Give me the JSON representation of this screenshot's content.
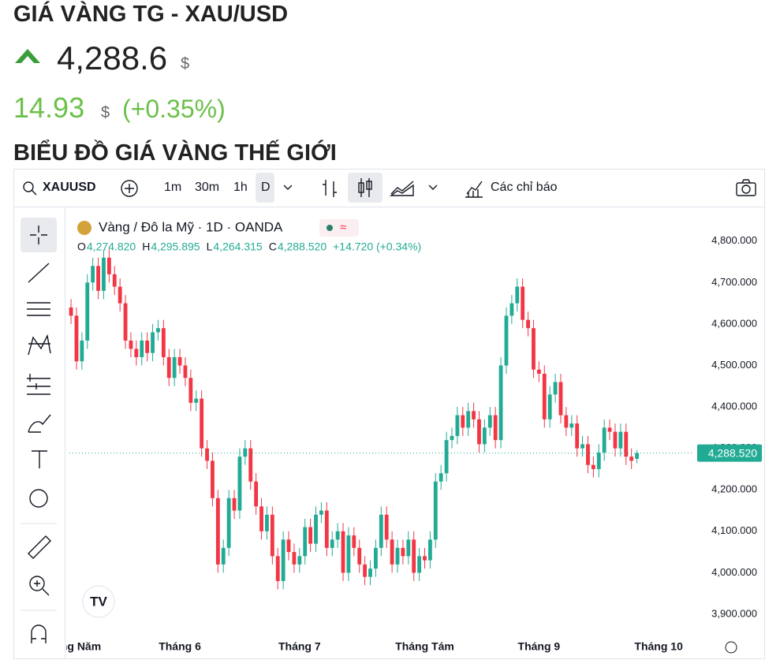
{
  "header": {
    "title": "GIÁ VÀNG TG - XAU/USD",
    "price": "4,288.6",
    "price_unit": "$",
    "change": "14.93",
    "change_unit": "$",
    "change_percent": "(+0.35%)",
    "section_title": "BIỂU ĐỒ GIÁ VÀNG THẾ GIỚI"
  },
  "toolbar": {
    "symbol": "XAUUSD",
    "intervals": [
      "1m",
      "30m",
      "1h",
      "D"
    ],
    "indicators": "Các chỉ báo"
  },
  "legend": {
    "title": "Vàng / Đô la Mỹ · 1D · OANDA",
    "o_label": "O",
    "o": "4,274.820",
    "h_label": "H",
    "h": "4,295.895",
    "l_label": "L",
    "l": "4,264.315",
    "c_label": "C",
    "c": "4,288.520",
    "change": "+14.720 (+0.34%)"
  },
  "chart_data": {
    "type": "candlestick",
    "up_color": "#22ab94",
    "down_color": "#f23645",
    "xlim": [
      -0.3,
      114.5
    ],
    "xticks": [
      {
        "value": 0,
        "label": "Tháng Năm"
      },
      {
        "value": 20,
        "label": "Tháng 6"
      },
      {
        "value": 42,
        "label": "Tháng 7"
      },
      {
        "value": 65,
        "label": "Tháng Tám"
      },
      {
        "value": 86,
        "label": "Tháng 9"
      },
      {
        "value": 108,
        "label": "Tháng 10"
      }
    ],
    "ylim": [
      3860,
      4868
    ],
    "yticks": [
      {
        "value": 3900,
        "label": "3,900.000"
      },
      {
        "value": 4000,
        "label": "4,000.000"
      },
      {
        "value": 4100,
        "label": "4,100.000"
      },
      {
        "value": 4200,
        "label": "4,200.000"
      },
      {
        "value": 4300,
        "label": "4,300.000"
      },
      {
        "value": 4400,
        "label": "4,400.000"
      },
      {
        "value": 4500,
        "label": "4,500.000"
      },
      {
        "value": 4600,
        "label": "4,600.000"
      },
      {
        "value": 4700,
        "label": "4,700.000"
      },
      {
        "value": 4800,
        "label": "4,800.000"
      }
    ],
    "price_line": {
      "value": 4288.52,
      "label": "4,288.520"
    },
    "open": [
      4640,
      4620,
      4510,
      4560,
      4700,
      4740,
      4680,
      4760,
      4720,
      4690,
      4650,
      4560,
      4540,
      4520,
      4560,
      4530,
      4580,
      4590,
      4520,
      4470,
      4520,
      4500,
      4470,
      4410,
      4420,
      4300,
      4270,
      4180,
      4020,
      4060,
      4180,
      4150,
      4280,
      4300,
      4220,
      4160,
      4100,
      4140,
      4040,
      3980,
      4080,
      4050,
      4020,
      4040,
      4110,
      4070,
      4140,
      4150,
      4060,
      4080,
      4100,
      4000,
      4090,
      4060,
      4020,
      3990,
      4010,
      4060,
      4140,
      4080,
      4020,
      4060,
      4040,
      4080,
      4000,
      4040,
      4030,
      4080,
      4220,
      4240,
      4320,
      4330,
      4380,
      4350,
      4390,
      4370,
      4310,
      4350,
      4380,
      4320,
      4500,
      4620,
      4650,
      4690,
      4610,
      4590,
      4490,
      4480,
      4370,
      4430,
      4460,
      4380,
      4350,
      4360,
      4300,
      4310,
      4260,
      4250,
      4290,
      4350,
      4340,
      4300,
      4340,
      4280,
      4274.82
    ],
    "high": [
      4660,
      4640,
      4580,
      4720,
      4760,
      4760,
      4780,
      4780,
      4740,
      4710,
      4670,
      4580,
      4560,
      4580,
      4580,
      4600,
      4610,
      4610,
      4540,
      4540,
      4540,
      4520,
      4490,
      4440,
      4440,
      4320,
      4290,
      4200,
      4080,
      4200,
      4200,
      4300,
      4320,
      4320,
      4240,
      4180,
      4160,
      4160,
      4060,
      4100,
      4100,
      4070,
      4060,
      4130,
      4130,
      4160,
      4170,
      4170,
      4100,
      4120,
      4120,
      4110,
      4110,
      4080,
      4040,
      4030,
      4080,
      4160,
      4160,
      4100,
      4080,
      4080,
      4100,
      4100,
      4060,
      4060,
      4100,
      4240,
      4260,
      4340,
      4350,
      4400,
      4400,
      4410,
      4410,
      4390,
      4370,
      4400,
      4400,
      4520,
      4640,
      4670,
      4710,
      4710,
      4630,
      4610,
      4510,
      4500,
      4450,
      4480,
      4480,
      4400,
      4380,
      4380,
      4330,
      4330,
      4280,
      4310,
      4370,
      4370,
      4360,
      4360,
      4360,
      4300,
      4295.895
    ],
    "low": [
      4600,
      4490,
      4490,
      4540,
      4680,
      4660,
      4660,
      4700,
      4670,
      4630,
      4540,
      4520,
      4500,
      4500,
      4510,
      4510,
      4560,
      4500,
      4450,
      4450,
      4480,
      4450,
      4390,
      4390,
      4280,
      4250,
      4160,
      4000,
      4000,
      4040,
      4130,
      4130,
      4260,
      4200,
      4140,
      4080,
      4080,
      4020,
      3960,
      3960,
      4030,
      4000,
      4000,
      4020,
      4050,
      4050,
      4120,
      4040,
      4040,
      4060,
      3980,
      3980,
      4040,
      4000,
      3970,
      3970,
      3990,
      4040,
      4060,
      4000,
      4000,
      4020,
      4020,
      3980,
      3980,
      4010,
      4010,
      4060,
      4200,
      4220,
      4300,
      4310,
      4330,
      4330,
      4350,
      4290,
      4290,
      4330,
      4300,
      4300,
      4480,
      4600,
      4630,
      4590,
      4570,
      4470,
      4460,
      4350,
      4350,
      4410,
      4360,
      4330,
      4330,
      4280,
      4280,
      4240,
      4230,
      4230,
      4270,
      4320,
      4280,
      4280,
      4260,
      4250,
      4264.315
    ],
    "close": [
      4620,
      4510,
      4560,
      4700,
      4740,
      4680,
      4760,
      4720,
      4690,
      4650,
      4560,
      4540,
      4520,
      4560,
      4530,
      4580,
      4590,
      4520,
      4470,
      4520,
      4500,
      4470,
      4410,
      4420,
      4300,
      4270,
      4180,
      4020,
      4060,
      4180,
      4150,
      4280,
      4300,
      4220,
      4160,
      4100,
      4140,
      4040,
      3980,
      4080,
      4050,
      4020,
      4040,
      4110,
      4070,
      4140,
      4150,
      4060,
      4080,
      4100,
      4000,
      4090,
      4060,
      4020,
      3990,
      4010,
      4060,
      4140,
      4080,
      4020,
      4060,
      4040,
      4080,
      4000,
      4040,
      4030,
      4080,
      4220,
      4240,
      4320,
      4330,
      4380,
      4350,
      4390,
      4370,
      4310,
      4350,
      4380,
      4320,
      4500,
      4620,
      4650,
      4690,
      4610,
      4590,
      4490,
      4480,
      4370,
      4430,
      4460,
      4380,
      4350,
      4360,
      4300,
      4310,
      4260,
      4250,
      4290,
      4350,
      4340,
      4300,
      4340,
      4280,
      4270,
      4288.52
    ]
  }
}
